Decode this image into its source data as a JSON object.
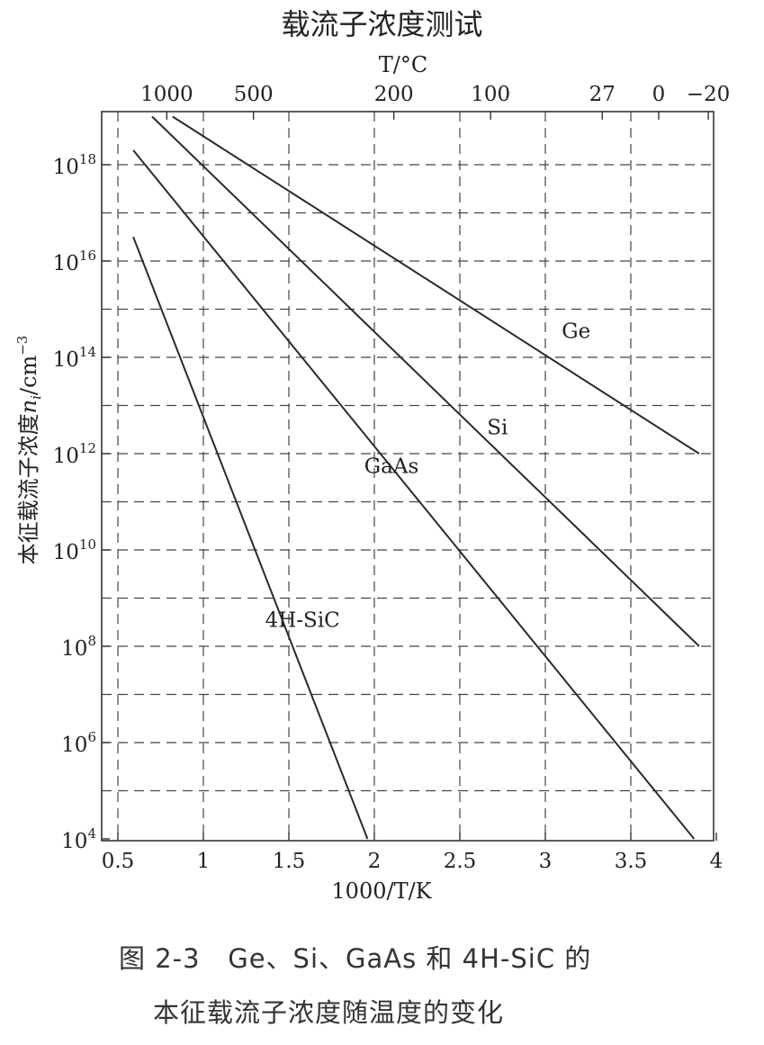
{
  "chart_data": {
    "type": "line",
    "title": "载流子浓度测试",
    "xlabel": "1000/T/K",
    "x2label": "T/°C",
    "ylabel": "本征载流子浓度n_i/cm^-3",
    "ylabel_main": "本征载流子浓度",
    "ylabel_var": "n",
    "ylabel_sub": "i",
    "ylabel_unit": "/cm",
    "ylabel_exp": "−3",
    "xlim": [
      0.5,
      4.0
    ],
    "ylim_log10": [
      4,
      19
    ],
    "y_scale": "log",
    "grid": "dashed",
    "x_ticks": [
      {
        "v": 0.5,
        "label": "0.5"
      },
      {
        "v": 1,
        "label": "1"
      },
      {
        "v": 1.5,
        "label": "1.5"
      },
      {
        "v": 2,
        "label": "2"
      },
      {
        "v": 2.5,
        "label": "2.5"
      },
      {
        "v": 3,
        "label": "3"
      },
      {
        "v": 3.5,
        "label": "3.5"
      },
      {
        "v": 4,
        "label": "4"
      }
    ],
    "y_ticks": [
      {
        "exp": 18,
        "base": "10",
        "power": "18"
      },
      {
        "exp": 16,
        "base": "10",
        "power": "16"
      },
      {
        "exp": 14,
        "base": "10",
        "power": "14"
      },
      {
        "exp": 12,
        "base": "10",
        "power": "12"
      },
      {
        "exp": 10,
        "base": "10",
        "power": "10"
      },
      {
        "exp": 8,
        "base": "10",
        "power": "8"
      },
      {
        "exp": 6,
        "base": "10",
        "power": "6"
      },
      {
        "exp": 4,
        "base": "10",
        "power": "4"
      }
    ],
    "top_ticks": [
      {
        "label": "1000",
        "x": 0.786
      },
      {
        "label": "500",
        "x": 1.293
      },
      {
        "label": "200",
        "x": 2.114
      },
      {
        "label": "100",
        "x": 2.68
      },
      {
        "label": "27",
        "x": 3.333
      },
      {
        "label": "0",
        "x": 3.663
      },
      {
        "label": "−20",
        "x": 3.953
      }
    ],
    "series": [
      {
        "name": "Ge",
        "points": [
          [
            0.82,
            19.0
          ],
          [
            3.9,
            12.0
          ]
        ],
        "label_at": [
          3.18,
          14.4
        ]
      },
      {
        "name": "Si",
        "points": [
          [
            0.7,
            19.0
          ],
          [
            3.9,
            8.0
          ]
        ],
        "label_at": [
          2.72,
          12.4
        ]
      },
      {
        "name": "GaAs",
        "points": [
          [
            0.59,
            18.3
          ],
          [
            3.87,
            4.0
          ]
        ],
        "label_at": [
          2.1,
          11.6
        ]
      },
      {
        "name": "4H-SiC",
        "points": [
          [
            0.59,
            16.5
          ],
          [
            1.96,
            4.0
          ]
        ],
        "label_at": [
          1.58,
          8.4
        ]
      }
    ]
  },
  "caption": {
    "line1": "图 2-3   Ge、Si、GaAs 和 4H-SiC 的",
    "line2": "本征载流子浓度随温度的变化"
  }
}
